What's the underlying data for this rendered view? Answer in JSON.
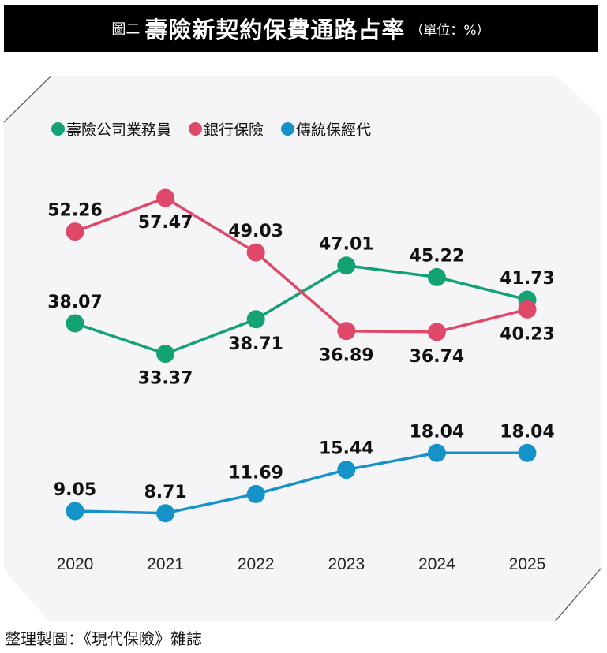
{
  "title": {
    "prefix": "圖二",
    "main": "壽險新契約保費通路占率",
    "unit": "（單位：%）"
  },
  "source": "整理製圖：《現代保險》雜誌",
  "chart_data": {
    "type": "line",
    "title": "壽險新契約保費通路占率",
    "ylabel": "%",
    "categories": [
      "2020",
      "2021",
      "2022",
      "2023",
      "2024",
      "2025"
    ],
    "grid": false,
    "legend_position": "top-left",
    "series": [
      {
        "name": "壽險公司業務員",
        "color": "#13a271",
        "values": [
          38.07,
          33.37,
          38.71,
          47.01,
          45.22,
          41.73
        ],
        "label_pos": [
          "above",
          "below",
          "below",
          "above",
          "above",
          "above"
        ]
      },
      {
        "name": "銀行保險",
        "color": "#e0486a",
        "values": [
          52.26,
          57.47,
          49.03,
          36.89,
          36.74,
          40.23
        ],
        "label_pos": [
          "above",
          "below",
          "above",
          "below",
          "below",
          "below"
        ]
      },
      {
        "name": "傳統保經代",
        "color": "#1593c9",
        "values": [
          9.05,
          8.71,
          11.69,
          15.44,
          18.04,
          18.04
        ],
        "label_pos": [
          "above",
          "above",
          "above",
          "above",
          "above",
          "above"
        ]
      }
    ]
  }
}
